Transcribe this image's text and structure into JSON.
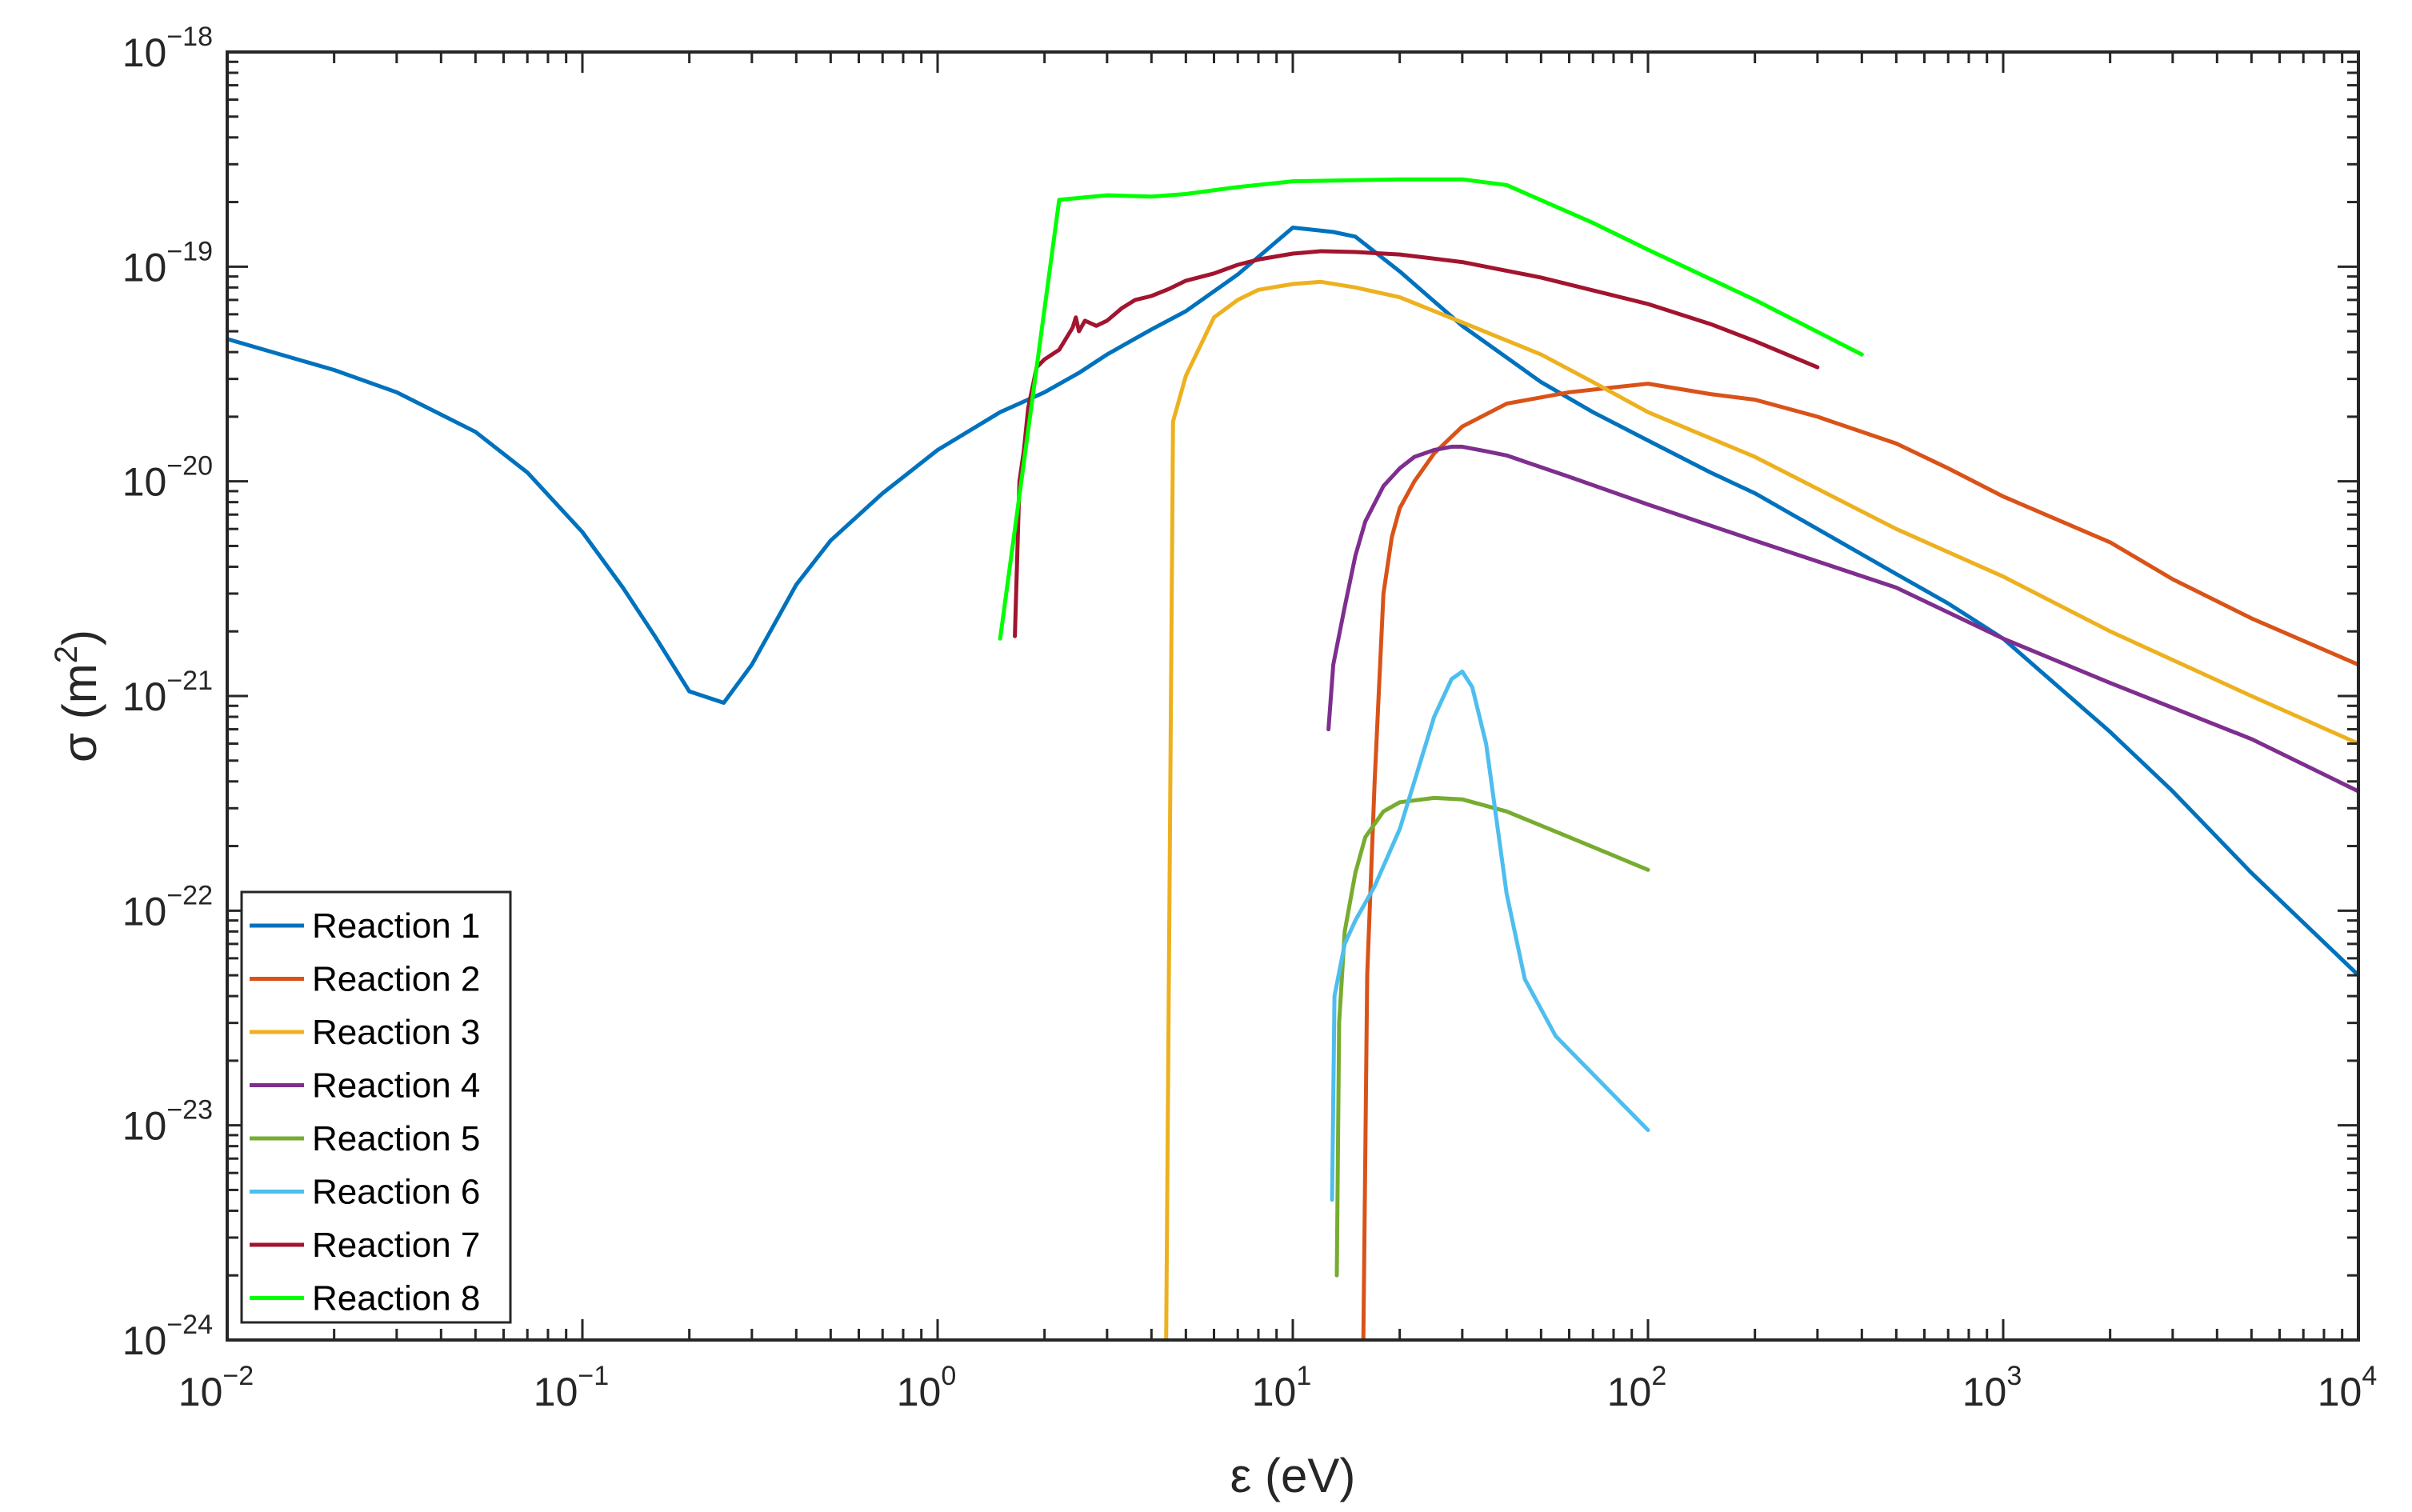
{
  "chart_data": {
    "type": "line",
    "title": "",
    "xlabel": "ε (eV)",
    "ylabel_prefix": "σ (m",
    "ylabel_exp": "2",
    "ylabel_suffix": ")",
    "xscale": "log",
    "yscale": "log",
    "xlim": [
      0.01,
      10000
    ],
    "ylim": [
      1e-24,
      1e-18
    ],
    "grid": false,
    "legend_location": "bottom-left",
    "x_ticks": [
      {
        "base": "10",
        "exp": "−2",
        "value": 0.01
      },
      {
        "base": "10",
        "exp": "−1",
        "value": 0.1
      },
      {
        "base": "10",
        "exp": "0",
        "value": 1
      },
      {
        "base": "10",
        "exp": "1",
        "value": 10
      },
      {
        "base": "10",
        "exp": "2",
        "value": 100
      },
      {
        "base": "10",
        "exp": "3",
        "value": 1000
      },
      {
        "base": "10",
        "exp": "4",
        "value": 10000
      }
    ],
    "y_ticks": [
      {
        "base": "10",
        "exp": "−24",
        "value": 1e-24
      },
      {
        "base": "10",
        "exp": "−23",
        "value": 1e-23
      },
      {
        "base": "10",
        "exp": "−22",
        "value": 1e-22
      },
      {
        "base": "10",
        "exp": "−21",
        "value": 1e-21
      },
      {
        "base": "10",
        "exp": "−20",
        "value": 1e-20
      },
      {
        "base": "10",
        "exp": "−19",
        "value": 1e-19
      },
      {
        "base": "10",
        "exp": "−18",
        "value": 1e-18
      }
    ],
    "series": [
      {
        "name": "Reaction 1",
        "color": "#0072BD",
        "x": [
          0.01,
          0.02,
          0.03,
          0.05,
          0.07,
          0.1,
          0.13,
          0.16,
          0.2,
          0.25,
          0.3,
          0.4,
          0.5,
          0.7,
          1,
          1.5,
          2,
          2.5,
          3,
          4,
          5,
          7,
          10,
          13,
          15,
          20,
          30,
          50,
          70,
          100,
          150,
          200,
          300,
          500,
          700,
          1000,
          2000,
          3000,
          5000,
          10000
        ],
        "y": [
          4.6e-20,
          3.3e-20,
          2.6e-20,
          1.7e-20,
          1.1e-20,
          5.8e-21,
          3.2e-21,
          1.9e-21,
          1.05e-21,
          9.3e-22,
          1.4e-21,
          3.3e-21,
          5.3e-21,
          8.8e-21,
          1.4e-20,
          2.1e-20,
          2.6e-20,
          3.2e-20,
          3.9e-20,
          5.1e-20,
          6.2e-20,
          9.2e-20,
          1.52e-19,
          1.45e-19,
          1.38e-19,
          9.5e-20,
          5.3e-20,
          2.9e-20,
          2.1e-20,
          1.55e-20,
          1.1e-20,
          8.8e-21,
          6e-21,
          3.7e-21,
          2.7e-21,
          1.85e-21,
          6.8e-22,
          3.6e-22,
          1.5e-22,
          5e-23
        ]
      },
      {
        "name": "Reaction 2",
        "color": "#D95319",
        "x": [
          15.8,
          16.2,
          17,
          18,
          19,
          20,
          22,
          25,
          30,
          40,
          60,
          100,
          150,
          200,
          300,
          500,
          700,
          1000,
          2000,
          3000,
          5000,
          10000
        ],
        "y": [
          1e-24,
          5e-23,
          4e-22,
          3e-21,
          5.5e-21,
          7.5e-21,
          1e-20,
          1.35e-20,
          1.8e-20,
          2.3e-20,
          2.6e-20,
          2.85e-20,
          2.55e-20,
          2.4e-20,
          2e-20,
          1.5e-20,
          1.15e-20,
          8.5e-21,
          5.2e-21,
          3.5e-21,
          2.3e-21,
          1.4e-21
        ]
      },
      {
        "name": "Reaction 3",
        "color": "#EDB120",
        "x": [
          4.4,
          4.6,
          5,
          6,
          7,
          8,
          10,
          12,
          15,
          20,
          30,
          50,
          70,
          100,
          200,
          500,
          1000,
          2000,
          5000,
          10000
        ],
        "y": [
          1e-24,
          1.9e-20,
          3.1e-20,
          5.8e-20,
          7e-20,
          7.8e-20,
          8.3e-20,
          8.5e-20,
          8e-20,
          7.2e-20,
          5.5e-20,
          3.9e-20,
          2.9e-20,
          2.1e-20,
          1.3e-20,
          6e-21,
          3.6e-21,
          2e-21,
          1e-21,
          6e-22
        ]
      },
      {
        "name": "Reaction 4",
        "color": "#7E2F8E",
        "x": [
          12.6,
          13,
          14,
          15,
          16,
          18,
          20,
          22,
          25,
          28,
          30,
          35,
          40,
          60,
          100,
          200,
          500,
          1000,
          2000,
          5000,
          10000
        ],
        "y": [
          7e-22,
          1.4e-21,
          2.6e-21,
          4.5e-21,
          6.5e-21,
          9.5e-21,
          1.15e-20,
          1.3e-20,
          1.4e-20,
          1.45e-20,
          1.45e-20,
          1.38e-20,
          1.32e-20,
          1.05e-20,
          7.8e-21,
          5.3e-21,
          3.2e-21,
          1.85e-21,
          1.15e-21,
          6.3e-22,
          3.6e-22
        ]
      },
      {
        "name": "Reaction 5",
        "color": "#77AC30",
        "x": [
          13.3,
          13.5,
          14,
          15,
          16,
          18,
          20,
          25,
          30,
          40,
          60,
          100
        ],
        "y": [
          2e-24,
          3e-23,
          8e-23,
          1.5e-22,
          2.2e-22,
          2.9e-22,
          3.2e-22,
          3.35e-22,
          3.3e-22,
          2.9e-22,
          2.2e-22,
          1.55e-22
        ]
      },
      {
        "name": "Reaction 6",
        "color": "#4DBEEE",
        "x": [
          12.9,
          13.1,
          14,
          15,
          17,
          20,
          22,
          25,
          28,
          30,
          32,
          35,
          40,
          45,
          55,
          100
        ],
        "y": [
          4.5e-24,
          4e-23,
          7e-23,
          9e-23,
          1.3e-22,
          2.4e-22,
          4e-22,
          8e-22,
          1.2e-21,
          1.3e-21,
          1.1e-21,
          6e-22,
          1.2e-22,
          4.8e-23,
          2.6e-23,
          9.5e-24
        ]
      },
      {
        "name": "Reaction 7",
        "color": "#A2142F",
        "x": [
          1.65,
          1.7,
          1.75,
          1.8,
          1.9,
          2.0,
          2.2,
          2.4,
          2.45,
          2.5,
          2.6,
          2.8,
          3.0,
          3.3,
          3.6,
          4.0,
          4.5,
          5.0,
          6,
          7,
          8,
          10,
          12,
          15,
          20,
          30,
          50,
          100,
          150,
          200,
          300
        ],
        "y": [
          1.9e-21,
          1e-20,
          1.4e-20,
          2.2e-20,
          3.4e-20,
          3.7e-20,
          4.1e-20,
          5.2e-20,
          5.8e-20,
          5e-20,
          5.6e-20,
          5.3e-20,
          5.6e-20,
          6.4e-20,
          7e-20,
          7.3e-20,
          7.9e-20,
          8.6e-20,
          9.3e-20,
          1.02e-19,
          1.08e-19,
          1.15e-19,
          1.18e-19,
          1.17e-19,
          1.14e-19,
          1.05e-19,
          8.9e-20,
          6.7e-20,
          5.4e-20,
          4.5e-20,
          3.4e-20
        ]
      },
      {
        "name": "Reaction 8",
        "color": "#00FF00",
        "x": [
          1.5,
          2.2,
          3,
          4,
          5,
          7,
          10,
          20,
          30,
          40,
          70,
          100,
          200,
          400
        ],
        "y": [
          1.85e-21,
          2.05e-19,
          2.15e-19,
          2.12e-19,
          2.18e-19,
          2.35e-19,
          2.5e-19,
          2.55e-19,
          2.55e-19,
          2.4e-19,
          1.6e-19,
          1.2e-19,
          7e-20,
          3.9e-20
        ]
      }
    ]
  }
}
